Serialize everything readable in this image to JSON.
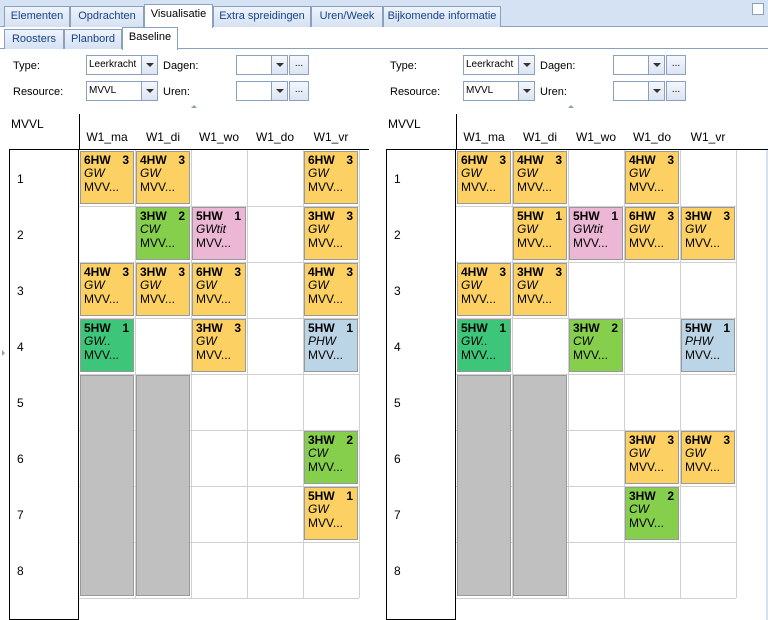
{
  "top_tabs": [
    "Elementen",
    "Opdrachten",
    "Visualisatie",
    "Extra spreidingen",
    "Uren/Week",
    "Bijkomende informatie"
  ],
  "active_top_tab": "Visualisatie",
  "sub_tabs": [
    "Roosters",
    "Planbord",
    "Baseline"
  ],
  "active_sub_tab": "Baseline",
  "panels": [
    {
      "type_label": "Type:",
      "type_value": "Leerkracht",
      "resource_label": "Resource:",
      "resource_value": "MVVL",
      "dagen_label": "Dagen:",
      "dagen_value": "",
      "uren_label": "Uren:",
      "uren_value": "",
      "dots_label": "...",
      "grid_title": "MVVL",
      "columns": [
        "W1_ma",
        "W1_di",
        "W1_wo",
        "W1_do",
        "W1_vr"
      ],
      "rows": [
        "1",
        "2",
        "3",
        "4",
        "5",
        "6",
        "7",
        "8"
      ],
      "lessons": [
        {
          "col": 0,
          "row": 0,
          "code": "6HW",
          "num": "3",
          "subject": "GW",
          "resource": "MVV...",
          "color": "#fcd062"
        },
        {
          "col": 1,
          "row": 0,
          "code": "4HW",
          "num": "3",
          "subject": "GW",
          "resource": "MVV...",
          "color": "#fcd062"
        },
        {
          "col": 4,
          "row": 0,
          "code": "6HW",
          "num": "3",
          "subject": "GW",
          "resource": "MVV...",
          "color": "#fcd062"
        },
        {
          "col": 1,
          "row": 1,
          "code": "3HW",
          "num": "2",
          "subject": "CW",
          "resource": "MVV...",
          "color": "#86cf4d"
        },
        {
          "col": 2,
          "row": 1,
          "code": "5HW",
          "num": "1",
          "subject": "GWtit",
          "resource": "MVV...",
          "color": "#ecb7d5"
        },
        {
          "col": 4,
          "row": 1,
          "code": "3HW",
          "num": "3",
          "subject": "GW",
          "resource": "MVV...",
          "color": "#fcd062"
        },
        {
          "col": 0,
          "row": 2,
          "code": "4HW",
          "num": "3",
          "subject": "GW",
          "resource": "MVV...",
          "color": "#fcd062"
        },
        {
          "col": 1,
          "row": 2,
          "code": "3HW",
          "num": "3",
          "subject": "GW",
          "resource": "MVV...",
          "color": "#fcd062"
        },
        {
          "col": 2,
          "row": 2,
          "code": "6HW",
          "num": "3",
          "subject": "GW",
          "resource": "MVV...",
          "color": "#fcd062"
        },
        {
          "col": 4,
          "row": 2,
          "code": "4HW",
          "num": "3",
          "subject": "GW",
          "resource": "MVV...",
          "color": "#fcd062"
        },
        {
          "col": 0,
          "row": 3,
          "code": "5HW",
          "num": "1",
          "subject": "GW..",
          "resource": "MVV...",
          "color": "#3dc67a"
        },
        {
          "col": 2,
          "row": 3,
          "code": "3HW",
          "num": "3",
          "subject": "GW",
          "resource": "MVV...",
          "color": "#fcd062"
        },
        {
          "col": 4,
          "row": 3,
          "code": "5HW",
          "num": "1",
          "subject": "PHW",
          "resource": "MVV...",
          "color": "#bcd5e6"
        },
        {
          "col": 4,
          "row": 5,
          "code": "3HW",
          "num": "2",
          "subject": "CW",
          "resource": "MVV...",
          "color": "#86cf4d"
        },
        {
          "col": 4,
          "row": 6,
          "code": "5HW",
          "num": "1",
          "subject": "GW",
          "resource": "MVV...",
          "color": "#fcd062"
        }
      ],
      "blocked": [
        {
          "col": 0,
          "row": 4
        },
        {
          "col": 1,
          "row": 4
        }
      ]
    },
    {
      "type_label": "Type:",
      "type_value": "Leerkracht",
      "resource_label": "Resource:",
      "resource_value": "MVVL",
      "dagen_label": "Dagen:",
      "dagen_value": "",
      "uren_label": "Uren:",
      "uren_value": "",
      "dots_label": "...",
      "grid_title": "MVVL",
      "columns": [
        "W1_ma",
        "W1_di",
        "W1_wo",
        "W1_do",
        "W1_vr"
      ],
      "rows": [
        "1",
        "2",
        "3",
        "4",
        "5",
        "6",
        "7",
        "8"
      ],
      "lessons": [
        {
          "col": 0,
          "row": 0,
          "code": "6HW",
          "num": "3",
          "subject": "GW",
          "resource": "MVV...",
          "color": "#fcd062"
        },
        {
          "col": 1,
          "row": 0,
          "code": "4HW",
          "num": "3",
          "subject": "GW",
          "resource": "MVV...",
          "color": "#fcd062"
        },
        {
          "col": 3,
          "row": 0,
          "code": "4HW",
          "num": "3",
          "subject": "GW",
          "resource": "MVV...",
          "color": "#fcd062"
        },
        {
          "col": 1,
          "row": 1,
          "code": "5HW",
          "num": "1",
          "subject": "GW",
          "resource": "MVV...",
          "color": "#fcd062"
        },
        {
          "col": 2,
          "row": 1,
          "code": "5HW",
          "num": "1",
          "subject": "GWtit",
          "resource": "MVV...",
          "color": "#ecb7d5"
        },
        {
          "col": 3,
          "row": 1,
          "code": "6HW",
          "num": "3",
          "subject": "GW",
          "resource": "MVV...",
          "color": "#fcd062"
        },
        {
          "col": 4,
          "row": 1,
          "code": "3HW",
          "num": "3",
          "subject": "GW",
          "resource": "MVV...",
          "color": "#fcd062"
        },
        {
          "col": 0,
          "row": 2,
          "code": "4HW",
          "num": "3",
          "subject": "GW",
          "resource": "MVV...",
          "color": "#fcd062"
        },
        {
          "col": 1,
          "row": 2,
          "code": "3HW",
          "num": "3",
          "subject": "GW",
          "resource": "MVV...",
          "color": "#fcd062"
        },
        {
          "col": 0,
          "row": 3,
          "code": "5HW",
          "num": "1",
          "subject": "GW..",
          "resource": "MVV...",
          "color": "#3dc67a"
        },
        {
          "col": 2,
          "row": 3,
          "code": "3HW",
          "num": "2",
          "subject": "CW",
          "resource": "MVV...",
          "color": "#86cf4d"
        },
        {
          "col": 4,
          "row": 3,
          "code": "5HW",
          "num": "1",
          "subject": "PHW",
          "resource": "MVV...",
          "color": "#bcd5e6"
        },
        {
          "col": 3,
          "row": 5,
          "code": "3HW",
          "num": "3",
          "subject": "GW",
          "resource": "MVV...",
          "color": "#fcd062"
        },
        {
          "col": 4,
          "row": 5,
          "code": "6HW",
          "num": "3",
          "subject": "GW",
          "resource": "MVV...",
          "color": "#fcd062"
        },
        {
          "col": 3,
          "row": 6,
          "code": "3HW",
          "num": "2",
          "subject": "CW",
          "resource": "MVV...",
          "color": "#86cf4d"
        }
      ],
      "blocked": [
        {
          "col": 0,
          "row": 4
        },
        {
          "col": 1,
          "row": 4
        }
      ]
    }
  ]
}
